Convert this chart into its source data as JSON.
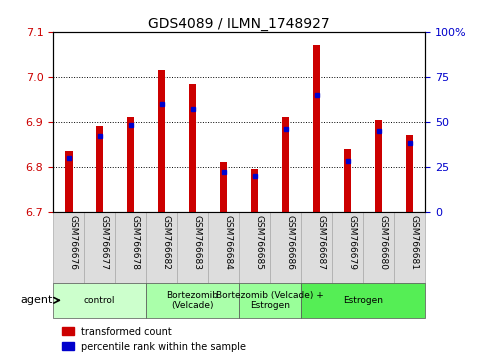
{
  "title": "GDS4089 / ILMN_1748927",
  "samples": [
    "GSM766676",
    "GSM766677",
    "GSM766678",
    "GSM766682",
    "GSM766683",
    "GSM766684",
    "GSM766685",
    "GSM766686",
    "GSM766687",
    "GSM766679",
    "GSM766680",
    "GSM766681"
  ],
  "transformed_count": [
    6.835,
    6.89,
    6.91,
    7.015,
    6.985,
    6.81,
    6.795,
    6.91,
    7.07,
    6.84,
    6.905,
    6.87
  ],
  "percentile_rank": [
    30,
    42,
    48,
    60,
    57,
    22,
    20,
    46,
    65,
    28,
    45,
    38
  ],
  "ymin": 6.7,
  "ymax": 7.1,
  "yticks_left": [
    6.7,
    6.8,
    6.9,
    7.0,
    7.1
  ],
  "yticks_right": [
    0,
    25,
    50,
    75,
    100
  ],
  "left_tick_color": "#cc0000",
  "right_tick_color": "#0000cc",
  "bar_color": "#cc0000",
  "dot_color": "#0000cc",
  "bar_width": 0.25,
  "agent_groups": [
    {
      "label": "control",
      "start": 0,
      "end": 3,
      "color": "#ccffcc"
    },
    {
      "label": "Bortezomib\n(Velcade)",
      "start": 3,
      "end": 6,
      "color": "#aaffaa"
    },
    {
      "label": "Bortezomib (Velcade) +\nEstrogen",
      "start": 6,
      "end": 8,
      "color": "#99ff99"
    },
    {
      "label": "Estrogen",
      "start": 8,
      "end": 12,
      "color": "#55ee55"
    }
  ],
  "agent_label": "agent",
  "legend_red": "transformed count",
  "legend_blue": "percentile rank within the sample",
  "xtick_bg": "#dddddd",
  "figure_bg": "#ffffff"
}
